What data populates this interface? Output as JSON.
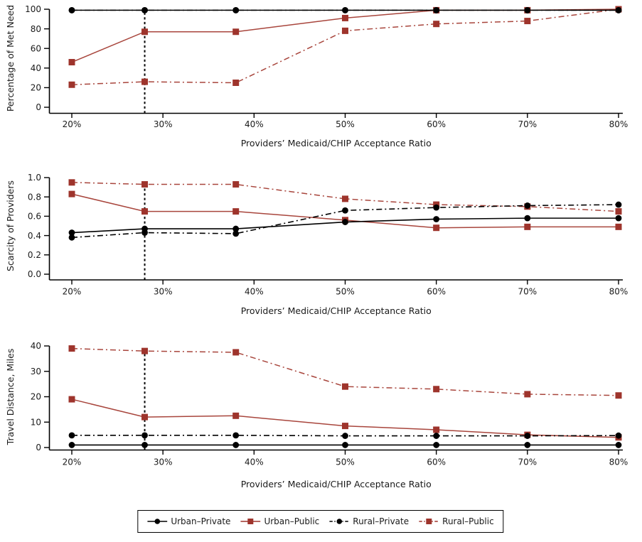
{
  "figure": {
    "x_axis_title": "Providers’ Medicaid/CHIP Acceptance Ratio",
    "x_tick_labels": [
      "20%",
      "30%",
      "40%",
      "50%",
      "60%",
      "70%",
      "80%"
    ],
    "x_tick_values": [
      20,
      30,
      40,
      50,
      60,
      70,
      80
    ],
    "x_range": [
      20,
      80
    ],
    "colors": {
      "black_series": "#000000",
      "red_series": "#9E342C",
      "red_line": "#A8453C",
      "text": "#1a1a1a",
      "axis": "#000000"
    },
    "series_meta": [
      {
        "name": "Urban–Private",
        "color": "#000000",
        "line": "solid",
        "marker": "circle"
      },
      {
        "name": "Urban–Public",
        "color": "#9E342C",
        "line": "solid",
        "marker": "square"
      },
      {
        "name": "Rural–Private",
        "color": "#000000",
        "line": "dashdot",
        "marker": "circle"
      },
      {
        "name": "Rural–Public",
        "color": "#9E342C",
        "line": "dashdot",
        "marker": "square"
      }
    ]
  },
  "chart_data": [
    {
      "type": "line",
      "title": "",
      "ylabel": "Percentage of Met Need",
      "xlabel": "Providers’ Medicaid/CHIP Acceptance Ratio",
      "x": [
        20,
        28,
        38,
        50,
        60,
        70,
        80
      ],
      "ylim": [
        0,
        100
      ],
      "yticks": [
        0,
        20,
        40,
        60,
        80,
        100
      ],
      "ytick_labels": [
        "0",
        "20",
        "40",
        "60",
        "80",
        "100"
      ],
      "reference_line": {
        "x": 28,
        "top": 99
      },
      "series": [
        {
          "name": "Urban–Private",
          "values": [
            99,
            99,
            99,
            99,
            99,
            99,
            99
          ]
        },
        {
          "name": "Urban–Public",
          "values": [
            46,
            77,
            77,
            91,
            99,
            99,
            100
          ]
        },
        {
          "name": "Rural–Private",
          "values": [
            99,
            99,
            99,
            99,
            99,
            99,
            99
          ]
        },
        {
          "name": "Rural–Public",
          "values": [
            23,
            26,
            25,
            78,
            85,
            88,
            100
          ]
        }
      ]
    },
    {
      "type": "line",
      "title": "",
      "ylabel": "Scarcity of Providers",
      "xlabel": "Providers’ Medicaid/CHIP Acceptance Ratio",
      "x": [
        20,
        28,
        38,
        50,
        60,
        70,
        80
      ],
      "ylim": [
        0,
        1.0
      ],
      "yticks": [
        0,
        0.2,
        0.4,
        0.6,
        0.8,
        1.0
      ],
      "ytick_labels": [
        "0.0",
        "0.2",
        "0.4",
        "0.6",
        "0.8",
        "1.0"
      ],
      "reference_line": {
        "x": 28,
        "top": 0.93
      },
      "series": [
        {
          "name": "Urban–Private",
          "values": [
            0.43,
            0.47,
            0.47,
            0.54,
            0.57,
            0.58,
            0.58
          ]
        },
        {
          "name": "Urban–Public",
          "values": [
            0.83,
            0.65,
            0.65,
            0.56,
            0.48,
            0.49,
            0.49
          ]
        },
        {
          "name": "Rural–Private",
          "values": [
            0.38,
            0.43,
            0.42,
            0.66,
            0.69,
            0.71,
            0.72
          ]
        },
        {
          "name": "Rural–Public",
          "values": [
            0.95,
            0.93,
            0.93,
            0.78,
            0.72,
            0.7,
            0.65
          ]
        }
      ]
    },
    {
      "type": "line",
      "title": "",
      "ylabel": "Travel Distance, Miles",
      "xlabel": "Providers’ Medicaid/CHIP Acceptance Ratio",
      "x": [
        20,
        28,
        38,
        50,
        60,
        70,
        80
      ],
      "ylim": [
        0,
        40
      ],
      "yticks": [
        0,
        10,
        20,
        30,
        40
      ],
      "ytick_labels": [
        "0",
        "10",
        "20",
        "30",
        "40"
      ],
      "reference_line": {
        "x": 28,
        "top": 38
      },
      "series": [
        {
          "name": "Urban–Private",
          "values": [
            1,
            1,
            1,
            1,
            1,
            1,
            1
          ]
        },
        {
          "name": "Urban–Public",
          "values": [
            19,
            12,
            12.5,
            8.5,
            7,
            5,
            4
          ]
        },
        {
          "name": "Rural–Private",
          "values": [
            4.8,
            4.8,
            4.8,
            4.6,
            4.6,
            4.6,
            4.7
          ]
        },
        {
          "name": "Rural–Public",
          "values": [
            39,
            38,
            37.5,
            24,
            23,
            21,
            20.5
          ]
        }
      ]
    }
  ],
  "legend": {
    "items": [
      {
        "label": "Urban–Private",
        "color": "#000000",
        "line": "solid",
        "marker": "circle"
      },
      {
        "label": "Urban–Public",
        "color": "#9E342C",
        "line": "solid",
        "marker": "square"
      },
      {
        "label": "Rural–Private",
        "color": "#000000",
        "line": "dashdot",
        "marker": "circle"
      },
      {
        "label": "Rural–Public",
        "color": "#9E342C",
        "line": "dashdot",
        "marker": "square"
      }
    ]
  }
}
